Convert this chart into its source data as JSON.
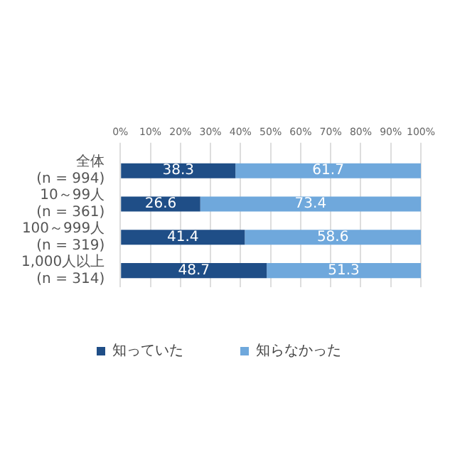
{
  "chart_data": {
    "type": "bar",
    "orientation": "horizontal",
    "stacked": true,
    "categories": [
      "全体\n(n = 994)",
      "10～99人\n(n = 361)",
      "100～999人\n(n = 319)",
      "1,000人以上\n(n = 314)"
    ],
    "series": [
      {
        "name": "知っていた",
        "color": "#1f4e87",
        "values": [
          38.3,
          26.6,
          41.4,
          48.7
        ]
      },
      {
        "name": "知らなかった",
        "color": "#6fa8dc",
        "values": [
          61.7,
          73.4,
          58.6,
          51.3
        ]
      }
    ],
    "xlim": [
      0,
      100
    ],
    "xticks": [
      {
        "value": 0,
        "label": "0%"
      },
      {
        "value": 10,
        "label": "10%"
      },
      {
        "value": 20,
        "label": "20%"
      },
      {
        "value": 30,
        "label": "30%"
      },
      {
        "value": 40,
        "label": "40%"
      },
      {
        "value": 50,
        "label": "50%"
      },
      {
        "value": 60,
        "label": "60%"
      },
      {
        "value": 70,
        "label": "70%"
      },
      {
        "value": 80,
        "label": "80%"
      },
      {
        "value": 90,
        "label": "90%"
      },
      {
        "value": 100,
        "label": "100%"
      }
    ],
    "grid": "x",
    "legend": "bottom",
    "data_labels": true
  }
}
